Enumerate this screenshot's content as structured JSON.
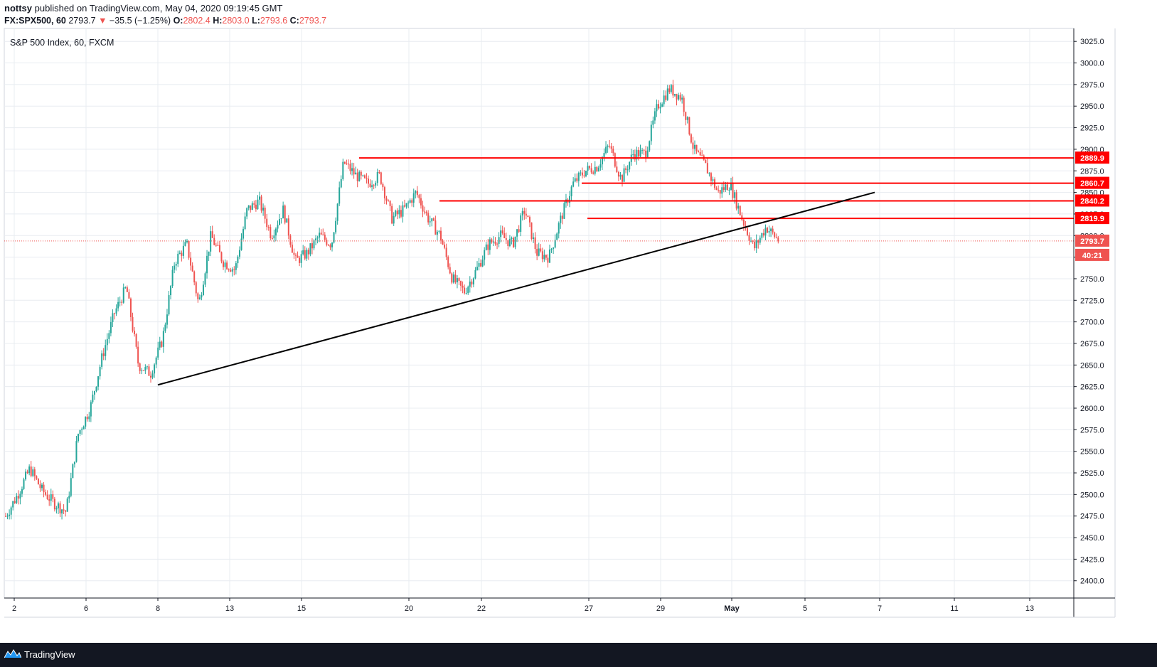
{
  "header": {
    "author": "nottsy",
    "published_text": "published on TradingView.com, May 04, 2020 09:19:45 GMT",
    "symbol": "FX:SPX500, 60",
    "last": "2793.7",
    "change_arrow": "▼",
    "change": "−35.5 (−1.25%)",
    "o_label": "O:",
    "o_value": "2802.4",
    "h_label": "H:",
    "h_value": "2803.0",
    "l_label": "L:",
    "l_value": "2793.6",
    "c_label": "C:",
    "c_value": "2793.7"
  },
  "legend": "S&P 500 Index, 60, FXCM",
  "footer": {
    "brand": "TradingView"
  },
  "colors": {
    "up": "#26a69a",
    "down": "#ef5350",
    "level": "#ff0000",
    "trend": "#000000",
    "grid": "#e8ecf1"
  },
  "chart_data": {
    "type": "candlestick",
    "title": "S&P 500 Index, 60, FXCM",
    "ylim": [
      2380,
      3040
    ],
    "y_ticks": [
      2400,
      2425,
      2450,
      2475,
      2500,
      2525,
      2550,
      2575,
      2600,
      2625,
      2650,
      2675,
      2700,
      2725,
      2750,
      2775,
      2800,
      2825,
      2850,
      2875,
      2900,
      2925,
      2950,
      2975,
      3000,
      3025
    ],
    "x_ticks": [
      "2",
      "6",
      "8",
      "13",
      "15",
      "20",
      "22",
      "27",
      "29",
      "May",
      "5",
      "7",
      "11",
      "13"
    ],
    "price_path": [
      2475,
      2500,
      2530,
      2505,
      2490,
      2480,
      2570,
      2600,
      2660,
      2710,
      2740,
      2650,
      2640,
      2680,
      2770,
      2790,
      2720,
      2800,
      2770,
      2760,
      2830,
      2840,
      2800,
      2830,
      2770,
      2780,
      2800,
      2790,
      2885,
      2870,
      2860,
      2870,
      2820,
      2830,
      2850,
      2820,
      2800,
      2750,
      2735,
      2760,
      2790,
      2800,
      2790,
      2830,
      2780,
      2775,
      2820,
      2860,
      2875,
      2880,
      2905,
      2865,
      2895,
      2895,
      2950,
      2970,
      2960,
      2900,
      2880,
      2850,
      2860,
      2820,
      2785,
      2810,
      2795
    ],
    "horizontal_levels": [
      {
        "label": "2889.9",
        "value": 2889.9,
        "from_date": "Apr 17"
      },
      {
        "label": "2860.7",
        "value": 2860.7,
        "from_date": "Apr 27"
      },
      {
        "label": "2840.2",
        "value": 2840.2,
        "from_date": "Apr 21"
      },
      {
        "label": "2819.9",
        "value": 2819.9,
        "from_date": "Apr 27"
      }
    ],
    "trendline": {
      "from": {
        "date": "Apr 8",
        "price": 2627
      },
      "to": {
        "date": "May 7",
        "price": 2850
      }
    },
    "last_price": {
      "label": "2793.7",
      "value": 2793.7
    },
    "countdown": "40:21"
  }
}
